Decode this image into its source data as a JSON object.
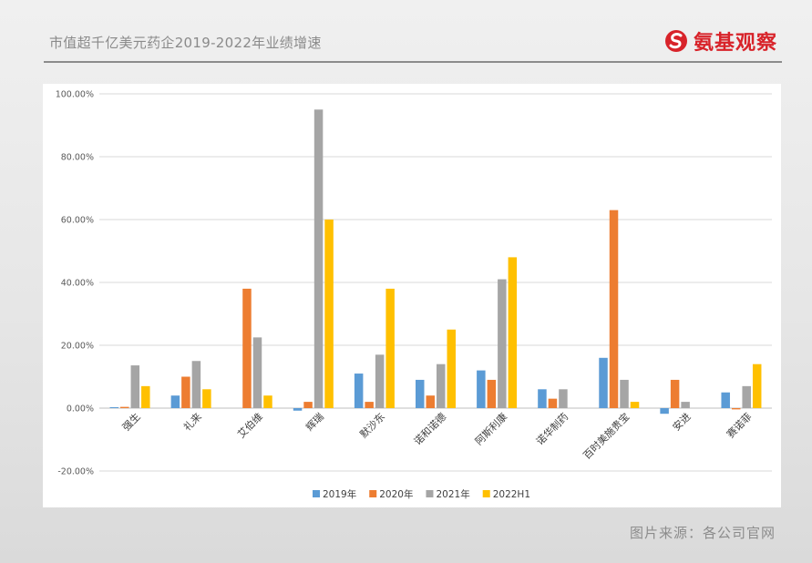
{
  "header": {
    "title": "市值超千亿美元药企2019-2022年业绩增速",
    "brand": "氨基观察"
  },
  "footer": {
    "source": "图片来源：各公司官网"
  },
  "chart_data": {
    "type": "bar",
    "title": "",
    "xlabel": "",
    "ylabel": "",
    "categories": [
      "强生",
      "礼来",
      "艾伯维",
      "辉瑞",
      "默沙东",
      "诺和诺德",
      "阿斯利康",
      "诺华制药",
      "百时美施贵宝",
      "安进",
      "赛诺菲"
    ],
    "series": [
      {
        "name": "2019年",
        "color": "#5b9bd5",
        "values": [
          0.3,
          4,
          0,
          -0.8,
          11,
          9,
          12,
          6,
          16,
          -1.8,
          5
        ]
      },
      {
        "name": "2020年",
        "color": "#ed7d31",
        "values": [
          0.4,
          10,
          38,
          2,
          2,
          4,
          9,
          3,
          63,
          9,
          -0.4
        ]
      },
      {
        "name": "2021年",
        "color": "#a5a5a5",
        "values": [
          13.6,
          15,
          22.5,
          95,
          17,
          14,
          41,
          6,
          9,
          2,
          7
        ]
      },
      {
        "name": "2022H1",
        "color": "#ffc000",
        "values": [
          7,
          6,
          4,
          60,
          38,
          25,
          48,
          0,
          2,
          0,
          14
        ]
      }
    ],
    "ylim": [
      -20,
      100
    ],
    "yticks": [
      -20,
      0,
      20,
      40,
      60,
      80,
      100
    ],
    "ytick_labels": [
      "-20.00%",
      "0.00%",
      "20.00%",
      "40.00%",
      "60.00%",
      "80.00%",
      "100.00%"
    ],
    "grid": true,
    "legend": "bottom"
  }
}
